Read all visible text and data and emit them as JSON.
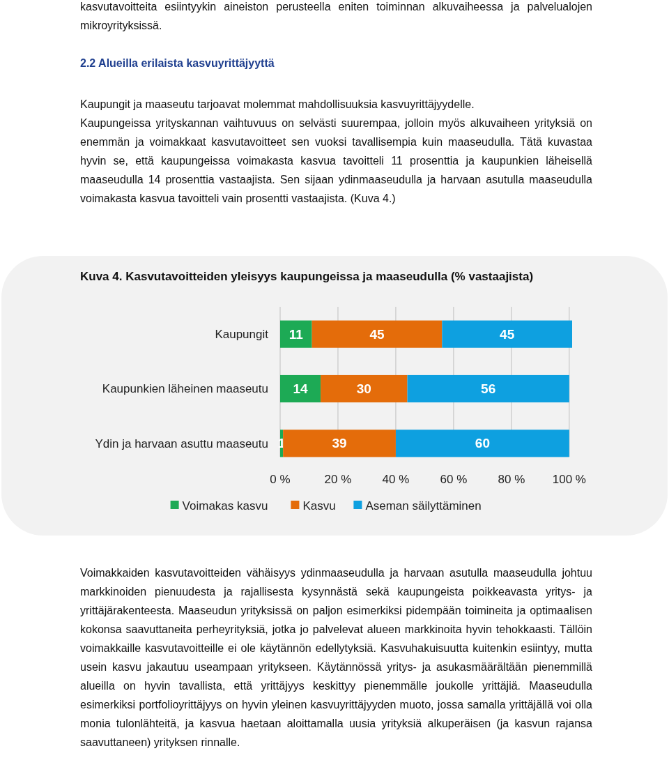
{
  "chart_data": {
    "type": "bar",
    "orientation": "horizontal",
    "stacked": true,
    "title": "Kuva 4. Kasvutavoitteiden yleisyys kaupungeissa ja maaseudulla (% vastaajista)",
    "categories": [
      "Kaupungit",
      "Kaupunkien läheinen maaseutu",
      "Ydin ja harvaan asuttu maaseutu"
    ],
    "series": [
      {
        "name": "Voimakas kasvu",
        "color": "#1daa55",
        "values": [
          11,
          14,
          1
        ]
      },
      {
        "name": "Kasvu",
        "color": "#e46c0a",
        "values": [
          45,
          30,
          39
        ]
      },
      {
        "name": "Aseman säilyttäminen",
        "color": "#0ea0e0",
        "values": [
          45,
          56,
          60
        ]
      }
    ],
    "xlim": [
      0,
      101
    ],
    "xticks": [
      {
        "value": 0,
        "label": "0 %"
      },
      {
        "value": 20,
        "label": "20 %"
      },
      {
        "value": 40,
        "label": "40 %"
      },
      {
        "value": 60,
        "label": "60 %"
      },
      {
        "value": 80,
        "label": "80 %"
      },
      {
        "value": 100,
        "label": "100 %"
      }
    ],
    "grid": "x",
    "legend": "bottom",
    "data_labels": true,
    "annotations": [
      "kasvutavoitteita esiintyykin aineiston perusteella eniten toiminnan alkuvaiheessa ja palvelualojen mikroyrityksissä.",
      "2.2 Alueilla erilaista kasvuyrittäjyyttä",
      "Kaupungit ja maaseutu tarjoavat molemmat mahdollisuuksia kasvuyrittäjyydelle.",
      "Kaupungeissa yrityskannan vaihtuvuus on selvästi suurempaa, jolloin myös alkuvaiheen yrityksiä on enemmän ja voimakkaat kasvutavoitteet sen vuoksi tavallisempia kuin maaseudulla. Tätä kuvastaa hyvin se, että kaupungeissa voimakasta kasvua tavoitteli 11 prosenttia ja kaupunkien läheisellä maaseudulla 14 prosenttia vastaajista. Sen sijaan ydinmaaseudulla ja harvaan asutulla maaseudulla voimakasta kasvua tavoitteli vain prosentti vastaajista. (Kuva 4.)",
      "Voimakkaiden kasvutavoitteiden vähäisyys ydinmaaseudulla ja harvaan asutulla maaseudulla johtuu markkinoiden pienuudesta ja rajallisesta kysynnästä sekä kaupungeista poikkeavasta yritys- ja yrittäjärakenteesta. Maaseudun yrityksissä on paljon esimerkiksi pidempään toimineita ja optimaalisen kokonsa saavuttaneita perheyrityksiä, jotka jo palvelevat alueen markkinoita hyvin tehokkaasti. Tällöin voimakkaille kasvutavoitteille ei ole käytännön edellytyksiä. Kasvuhakuisuutta kuitenkin esiintyy, mutta usein kasvu jakautuu useampaan yritykseen. Käytännössä yritys- ja asukasmäärältään pienemmillä alueilla on hyvin tavallista, että yrittäjyys keskittyy pienemmälle joukolle yrittäjiä. Maaseudulla esimerkiksi portfolioyrittäjyys on hyvin yleinen kasvuyrittäjyyden muoto, jossa samalla yrittäjällä voi olla monia tulonlähteitä, ja kasvua haetaan aloittamalla uusia yrityksiä alkuperäisen (ja kasvun rajansa saavuttaneen) yrityksen rinnalle."
    ]
  }
}
